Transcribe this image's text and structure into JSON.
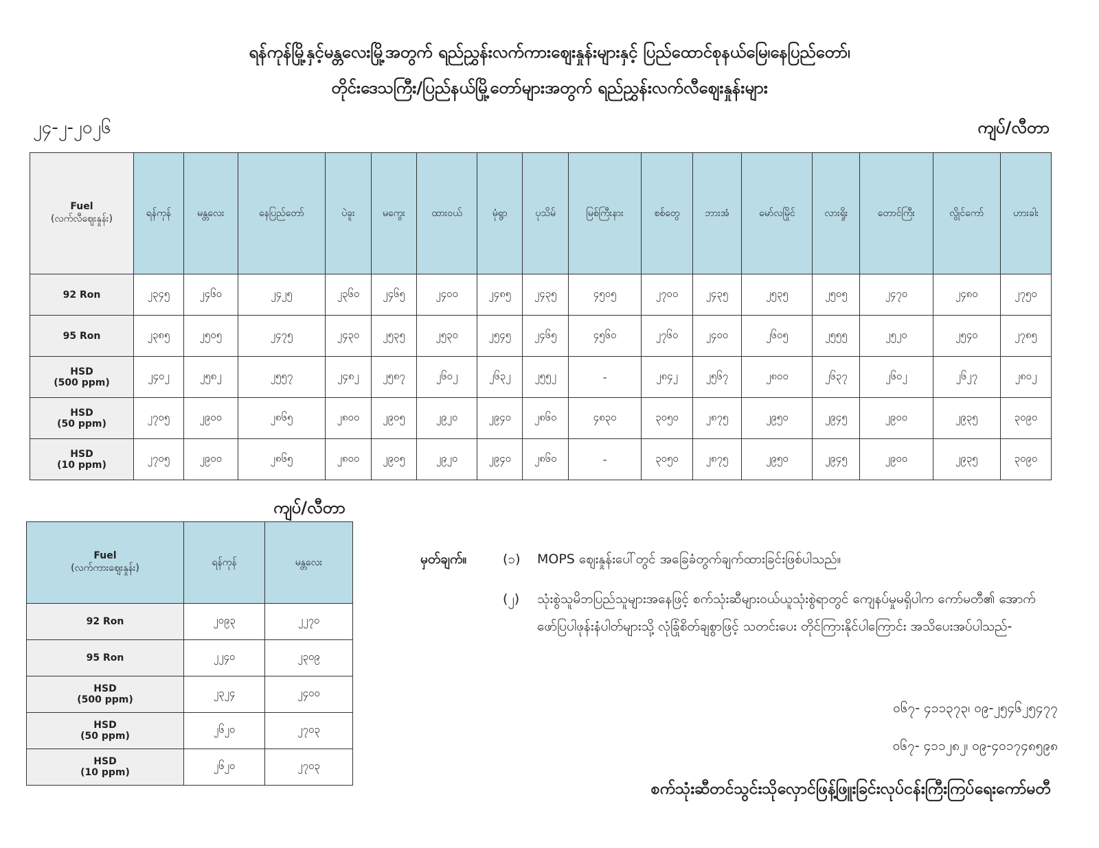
{
  "title_line1": "ရန်ကုန်မြို့နှင့်မန္တလေးမြို့အတွက် ရည်ညွှန်းလက်ကားဈေးနှုန်းများနှင့် ပြည်ထောင်စုနယ်မြေ၊နေပြည်တော်၊",
  "title_line2": "တိုင်းဒေသကြီး/ပြည်နယ်မြို့တော်များအတွက် ရည်ညွှန်းလက်လီဈေးနှုန်းများ",
  "date": "၂၄-၂-၂၀၂၆",
  "unit": "ကျပ်/လီတာ",
  "retail": {
    "fuel_header": "Fuel",
    "fuel_subheader": "(လက်လီဈေးနှုန်း)",
    "cities": [
      "ရန်ကုန်",
      "မန္တလေး",
      "နေပြည်တော်",
      "ပဲခူး",
      "မကွေး",
      "ထားဝယ်",
      "မုံရွာ",
      "ပုသိမ်",
      "မြစ်ကြီးနား",
      "စစ်တွေ",
      "ဘားအံ",
      "မော်လမြိုင်",
      "လားရှိုး",
      "တောင်ကြီး",
      "လွိုင်ကော်",
      "ဟားခါး"
    ],
    "rows": [
      {
        "fuel": "92 Ron",
        "sub": "",
        "values": [
          "၂၃၄၅",
          "၂၄၆၀",
          "၂၄၂၅",
          "၂၃၆၀",
          "၂၄၆၅",
          "၂၄၀၀",
          "၂၄၈၅",
          "၂၄၃၅",
          "၄၅၀၅",
          "၂၇၀၀",
          "၂၄၃၅",
          "၂၅၃၅",
          "၂၅၀၅",
          "၂၄၇၀",
          "၂၄၈၀",
          "၂၇၅၀"
        ]
      },
      {
        "fuel": "95 Ron",
        "sub": "",
        "values": [
          "၂၃၈၅",
          "၂၅၀၅",
          "၂၄၇၅",
          "၂၄၃၀",
          "၂၅၃၅",
          "၂၅၃၀",
          "၂၅၄၅",
          "၂၄၆၅",
          "၄၅၆၀",
          "၂၇၆၀",
          "၂၄၀၀",
          "၂၆၀၅",
          "၂၅၅၅",
          "၂၅၂၀",
          "၂၅၄၀",
          "၂၇၈၅"
        ]
      },
      {
        "fuel": "HSD",
        "sub": "(500 ppm)",
        "values": [
          "၂၄၀၂",
          "၂၅၈၂",
          "၂၅၅၇",
          "၂၄၈၂",
          "၂၅၈၇",
          "၂၆၀၂",
          "၂၆၃၂",
          "၂၅၅၂",
          "-",
          "၂၈၄၂",
          "၂၅၆၇",
          "၂၈၀၀",
          "၂၆၃၇",
          "၂၆၀၂",
          "၂၆၂၇",
          "၂၈၀၂"
        ]
      },
      {
        "fuel": "HSD",
        "sub": "(50 ppm)",
        "values": [
          "၂၇၀၅",
          "၂၉၀၀",
          "၂၈၆၅",
          "၂၈၀၀",
          "၂၉၀၅",
          "၂၉၂၀",
          "၂၉၄၀",
          "၂၈၆၀",
          "၄၈၃၀",
          "၃၀၅၀",
          "၂၈၇၅",
          "၂၉၅၀",
          "၂၉၄၅",
          "၂၉၀၀",
          "၂၉၃၅",
          "၃၀၉၀"
        ]
      },
      {
        "fuel": "HSD",
        "sub": "(10 ppm)",
        "values": [
          "၂၇၀၅",
          "၂၉၀၀",
          "၂၈၆၅",
          "၂၈၀၀",
          "၂၉၀၅",
          "၂၉၂၀",
          "၂၉၄၀",
          "၂၈၆၀",
          "-",
          "၃၀၅၀",
          "၂၈၇၅",
          "၂၉၅၀",
          "၂၉၄၅",
          "၂၉၀၀",
          "၂၉၃၅",
          "၃၀၉၀"
        ]
      }
    ]
  },
  "wholesale": {
    "unit": "ကျပ်/လီတာ",
    "fuel_header": "Fuel",
    "fuel_subheader": "(လက်ကားဈေးနှုန်း)",
    "cities": [
      "ရန်ကုန်",
      "မန္တလေး"
    ],
    "rows": [
      {
        "fuel": "92 Ron",
        "sub": "",
        "values": [
          "၂၀၉၃",
          "၂၂၇၀"
        ]
      },
      {
        "fuel": "95 Ron",
        "sub": "",
        "values": [
          "၂၂၄၀",
          "၂၃၀၉"
        ]
      },
      {
        "fuel": "HSD",
        "sub": "(500 ppm)",
        "values": [
          "၂၃၂၄",
          "၂၄၀၀"
        ]
      },
      {
        "fuel": "HSD",
        "sub": "(50 ppm)",
        "values": [
          "၂၆၂၀",
          "၂၇၀၃"
        ]
      },
      {
        "fuel": "HSD",
        "sub": "(10 ppm)",
        "values": [
          "၂၆၂၀",
          "၂၇၀၃"
        ]
      }
    ]
  },
  "notes": {
    "label": "မှတ်ချက်။",
    "items": [
      {
        "num": "(၁)",
        "text": "MOPS ဈေးနှုန်းပေါ်တွင် အခြေခံတွက်ချက်ထားခြင်းဖြစ်ပါသည်။"
      },
      {
        "num": "(၂)",
        "text": "သုံးစွဲသူမိဘပြည်သူများအနေဖြင့် စက်သုံးဆီများဝယ်ယူသုံးစွဲရာတွင် ကျေနပ်မှုမရှိပါက ကော်မတီ၏ အောက်ဖော်ပြပါဖုန်းနံပါတ်များသို့ လုံခြုံစိတ်ချစွာဖြင့် သတင်းပေး တိုင်ကြားနိုင်ပါကြောင်း အသိပေးအပ်ပါသည်-"
      }
    ],
    "phones": [
      "၀၆၇- ၄၁၁၃၇၃၊ ၀၉-၂၅၄၆၂၅၄၇၇",
      "၀၆၇- ၄၁၁၂၈၂၊ ၀၉-၄၀၁၇၄၈၅၉၈"
    ]
  },
  "footer": "စက်သုံးဆီတင်သွင်းသိုလှောင်ဖြန့်ဖြူးခြင်းလုပ်ငန်းကြီးကြပ်ရေးကော်မတီ",
  "colors": {
    "header_bg": "#b9dce6",
    "row_header_bg": "#efefef"
  }
}
